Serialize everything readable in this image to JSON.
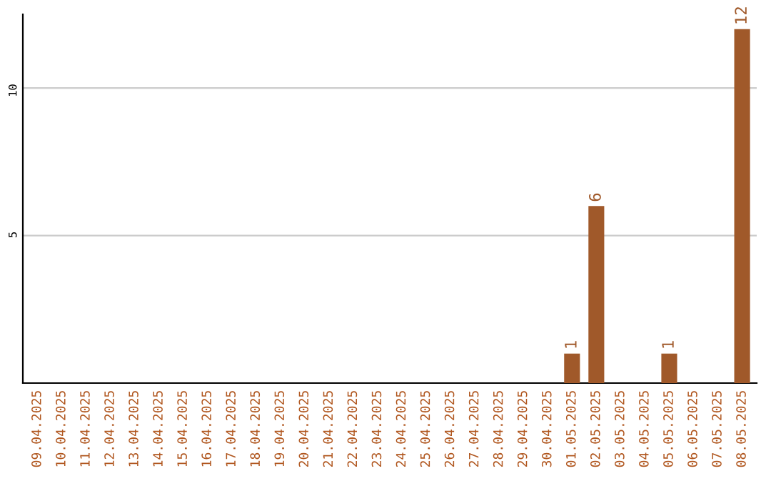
{
  "chart_data": {
    "type": "bar",
    "categories": [
      "09.04.2025",
      "10.04.2025",
      "11.04.2025",
      "12.04.2025",
      "13.04.2025",
      "14.04.2025",
      "15.04.2025",
      "16.04.2025",
      "17.04.2025",
      "18.04.2025",
      "19.04.2025",
      "20.04.2025",
      "21.04.2025",
      "22.04.2025",
      "23.04.2025",
      "24.04.2025",
      "25.04.2025",
      "26.04.2025",
      "27.04.2025",
      "28.04.2025",
      "29.04.2025",
      "30.04.2025",
      "01.05.2025",
      "02.05.2025",
      "03.05.2025",
      "04.05.2025",
      "05.05.2025",
      "06.05.2025",
      "07.05.2025",
      "08.05.2025"
    ],
    "values": [
      0,
      0,
      0,
      0,
      0,
      0,
      0,
      0,
      0,
      0,
      0,
      0,
      0,
      0,
      0,
      0,
      0,
      0,
      0,
      0,
      0,
      0,
      1,
      6,
      0,
      0,
      1,
      0,
      0,
      12
    ],
    "value_labels": [
      null,
      null,
      null,
      null,
      null,
      null,
      null,
      null,
      null,
      null,
      null,
      null,
      null,
      null,
      null,
      null,
      null,
      null,
      null,
      null,
      null,
      null,
      "1",
      "6",
      null,
      null,
      "1",
      null,
      null,
      "12"
    ],
    "color": "#a0592a",
    "ylim": [
      0,
      12.5
    ],
    "yticks": [
      5,
      10
    ],
    "grid": "y"
  }
}
